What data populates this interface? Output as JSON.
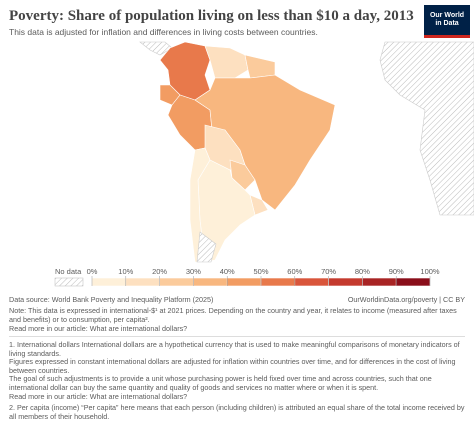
{
  "header": {
    "title": "Poverty: Share of population living on less than $10 a day, 2013",
    "subtitle": "This data is adjusted for inflation and differences in living costs between countries.",
    "logo": [
      "Our World",
      "in Data"
    ]
  },
  "legend": {
    "no_data": "No data",
    "ticks": [
      {
        "value": 0,
        "label": "0%"
      },
      {
        "value": 10,
        "label": "10%"
      },
      {
        "value": 20,
        "label": "20%"
      },
      {
        "value": 30,
        "label": "30%"
      },
      {
        "value": 40,
        "label": "40%"
      },
      {
        "value": 50,
        "label": "50%"
      },
      {
        "value": 60,
        "label": "60%"
      },
      {
        "value": 70,
        "label": "70%"
      },
      {
        "value": 80,
        "label": "80%"
      },
      {
        "value": 90,
        "label": "90%"
      },
      {
        "value": 100,
        "label": "100%"
      }
    ],
    "colors": [
      "#fef0d9",
      "#fde0c0",
      "#fbcb9c",
      "#f8b77f",
      "#f29c62",
      "#e8794b",
      "#d9553b",
      "#c43a2e",
      "#a82424",
      "#8a0e1a"
    ]
  },
  "footer": {
    "source": "Data source: World Bank Poverty and Inequality Platform (2025)",
    "url": "OurWorldinData.org/poverty | CC BY",
    "note": "Note: This data is expressed in international-$¹ at 2021 prices. Depending on the country and year, it relates to income (measured after taxes and benefits) or to consumption, per capita².",
    "read_more": "Read more in our article: What are international dollars?",
    "footnotes": [
      "1. International dollars International dollars are a hypothetical currency that is used to make meaningful comparisons of monetary indicators of living standards.",
      "Figures expressed in constant international dollars are adjusted for inflation within countries over time, and for differences in the cost of living between countries.",
      "The goal of such adjustments is to provide a unit whose purchasing power is held fixed over time and across countries, such that one international dollar can buy the same quantity and quality of goods and services no matter where or when it is spent.",
      "Read more in our article: What are international dollars?",
      "2. Per capita (income) “Per capita” here means that each person (including children) is attributed an equal share of the total income received by all members of their household."
    ]
  }
}
